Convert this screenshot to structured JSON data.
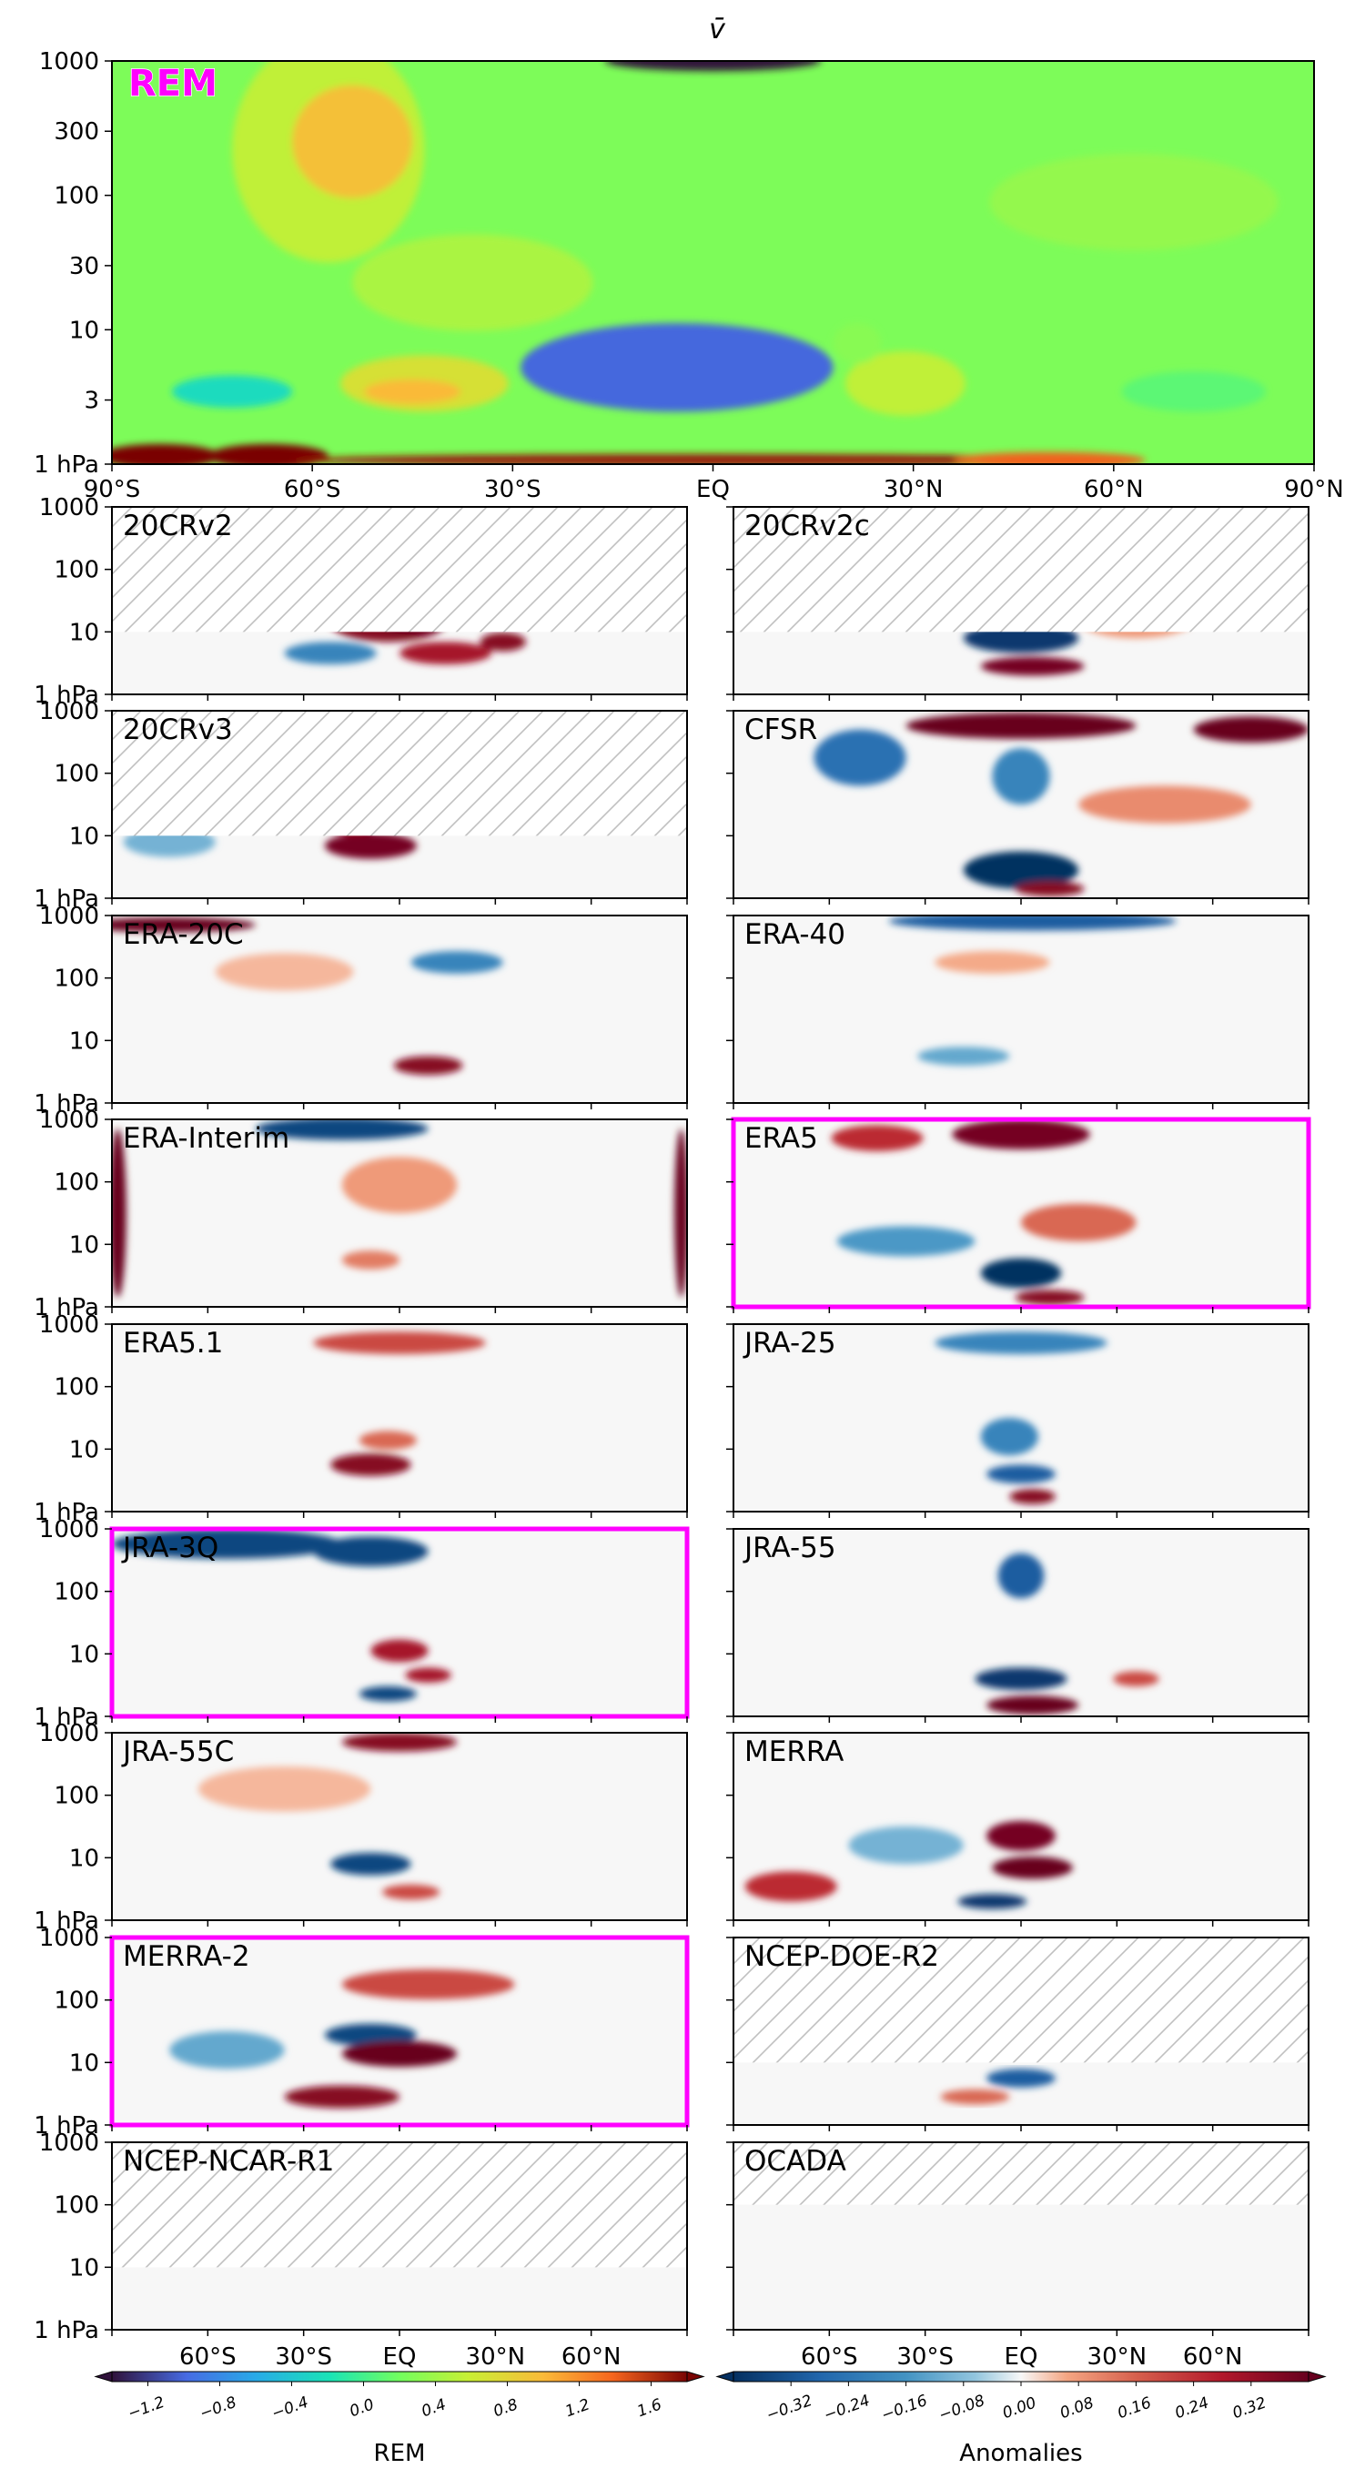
{
  "figure": {
    "title": "v̄",
    "highlight_color": "#ff00ff",
    "hatch_color": "#c0c0c0"
  },
  "top_panel": {
    "label": "REM",
    "label_color": "#ff00ff",
    "y_ticks": [
      "1 hPa",
      "3",
      "10",
      "30",
      "100",
      "300",
      "1000"
    ],
    "x_ticks": [
      "90°S",
      "60°S",
      "30°S",
      "EQ",
      "30°N",
      "60°N",
      "90°N"
    ]
  },
  "small_panel_axes": {
    "y_ticks": [
      "1 hPa",
      "10",
      "100",
      "1000"
    ],
    "x_ticks": [
      "60°S",
      "30°S",
      "EQ",
      "30°N",
      "60°N"
    ]
  },
  "chart_data": {
    "type": "heatmap",
    "title": "v̄",
    "x_axis": {
      "ticks": [
        "90°S",
        "60°S",
        "30°S",
        "EQ",
        "30°N",
        "60°N",
        "90°N"
      ],
      "range": [
        -90,
        90
      ]
    },
    "y_axis": {
      "scale": "log",
      "range": [
        1000,
        1
      ],
      "ticks_top_panel": [
        "1 hPa",
        "3",
        "10",
        "30",
        "100",
        "300",
        "1000"
      ],
      "ticks_small_panels": [
        "1 hPa",
        "10",
        "100",
        "1000"
      ]
    },
    "panels": [
      {
        "name": "REM",
        "kind": "climatology",
        "highlighted": false,
        "top_limit_hpa": 1
      },
      {
        "name": "20CRv2",
        "kind": "anomaly",
        "highlighted": false,
        "top_limit_hpa": 10
      },
      {
        "name": "20CRv2c",
        "kind": "anomaly",
        "highlighted": false,
        "top_limit_hpa": 10
      },
      {
        "name": "20CRv3",
        "kind": "anomaly",
        "highlighted": false,
        "top_limit_hpa": 10
      },
      {
        "name": "CFSR",
        "kind": "anomaly",
        "highlighted": false,
        "top_limit_hpa": 1
      },
      {
        "name": "ERA-20C",
        "kind": "anomaly",
        "highlighted": false,
        "top_limit_hpa": 1
      },
      {
        "name": "ERA-40",
        "kind": "anomaly",
        "highlighted": false,
        "top_limit_hpa": 1
      },
      {
        "name": "ERA-Interim",
        "kind": "anomaly",
        "highlighted": false,
        "top_limit_hpa": 1
      },
      {
        "name": "ERA5",
        "kind": "anomaly",
        "highlighted": true,
        "top_limit_hpa": 1
      },
      {
        "name": "ERA5.1",
        "kind": "anomaly",
        "highlighted": false,
        "top_limit_hpa": 1
      },
      {
        "name": "JRA-25",
        "kind": "anomaly",
        "highlighted": false,
        "top_limit_hpa": 1
      },
      {
        "name": "JRA-3Q",
        "kind": "anomaly",
        "highlighted": true,
        "top_limit_hpa": 1
      },
      {
        "name": "JRA-55",
        "kind": "anomaly",
        "highlighted": false,
        "top_limit_hpa": 1
      },
      {
        "name": "JRA-55C",
        "kind": "anomaly",
        "highlighted": false,
        "top_limit_hpa": 1
      },
      {
        "name": "MERRA",
        "kind": "anomaly",
        "highlighted": false,
        "top_limit_hpa": 1
      },
      {
        "name": "MERRA-2",
        "kind": "anomaly",
        "highlighted": true,
        "top_limit_hpa": 1
      },
      {
        "name": "NCEP-DOE-R2",
        "kind": "anomaly",
        "highlighted": false,
        "top_limit_hpa": 10
      },
      {
        "name": "NCEP-NCAR-R1",
        "kind": "anomaly",
        "highlighted": false,
        "top_limit_hpa": 10
      },
      {
        "name": "OCADA",
        "kind": "anomaly",
        "highlighted": false,
        "top_limit_hpa": 100
      }
    ],
    "colorbars": [
      {
        "label": "REM",
        "colormap": "turbo",
        "ticks": [
          -1.2,
          -0.8,
          -0.4,
          0.0,
          0.4,
          0.8,
          1.2,
          1.6
        ],
        "tick_labels": [
          "−1.2",
          "−0.8",
          "−0.4",
          "0.0",
          "0.4",
          "0.8",
          "1.2",
          "1.6"
        ],
        "range": [
          -1.4,
          1.8
        ]
      },
      {
        "label": "Anomalies",
        "colormap": "RdBu_r",
        "ticks": [
          -0.32,
          -0.24,
          -0.16,
          -0.08,
          0.0,
          0.08,
          0.16,
          0.24,
          0.32
        ],
        "tick_labels": [
          "−0.32",
          "−0.24",
          "−0.16",
          "−0.08",
          "0.00",
          "0.08",
          "0.16",
          "0.24",
          "0.32"
        ],
        "range": [
          -0.4,
          0.4
        ]
      }
    ]
  }
}
